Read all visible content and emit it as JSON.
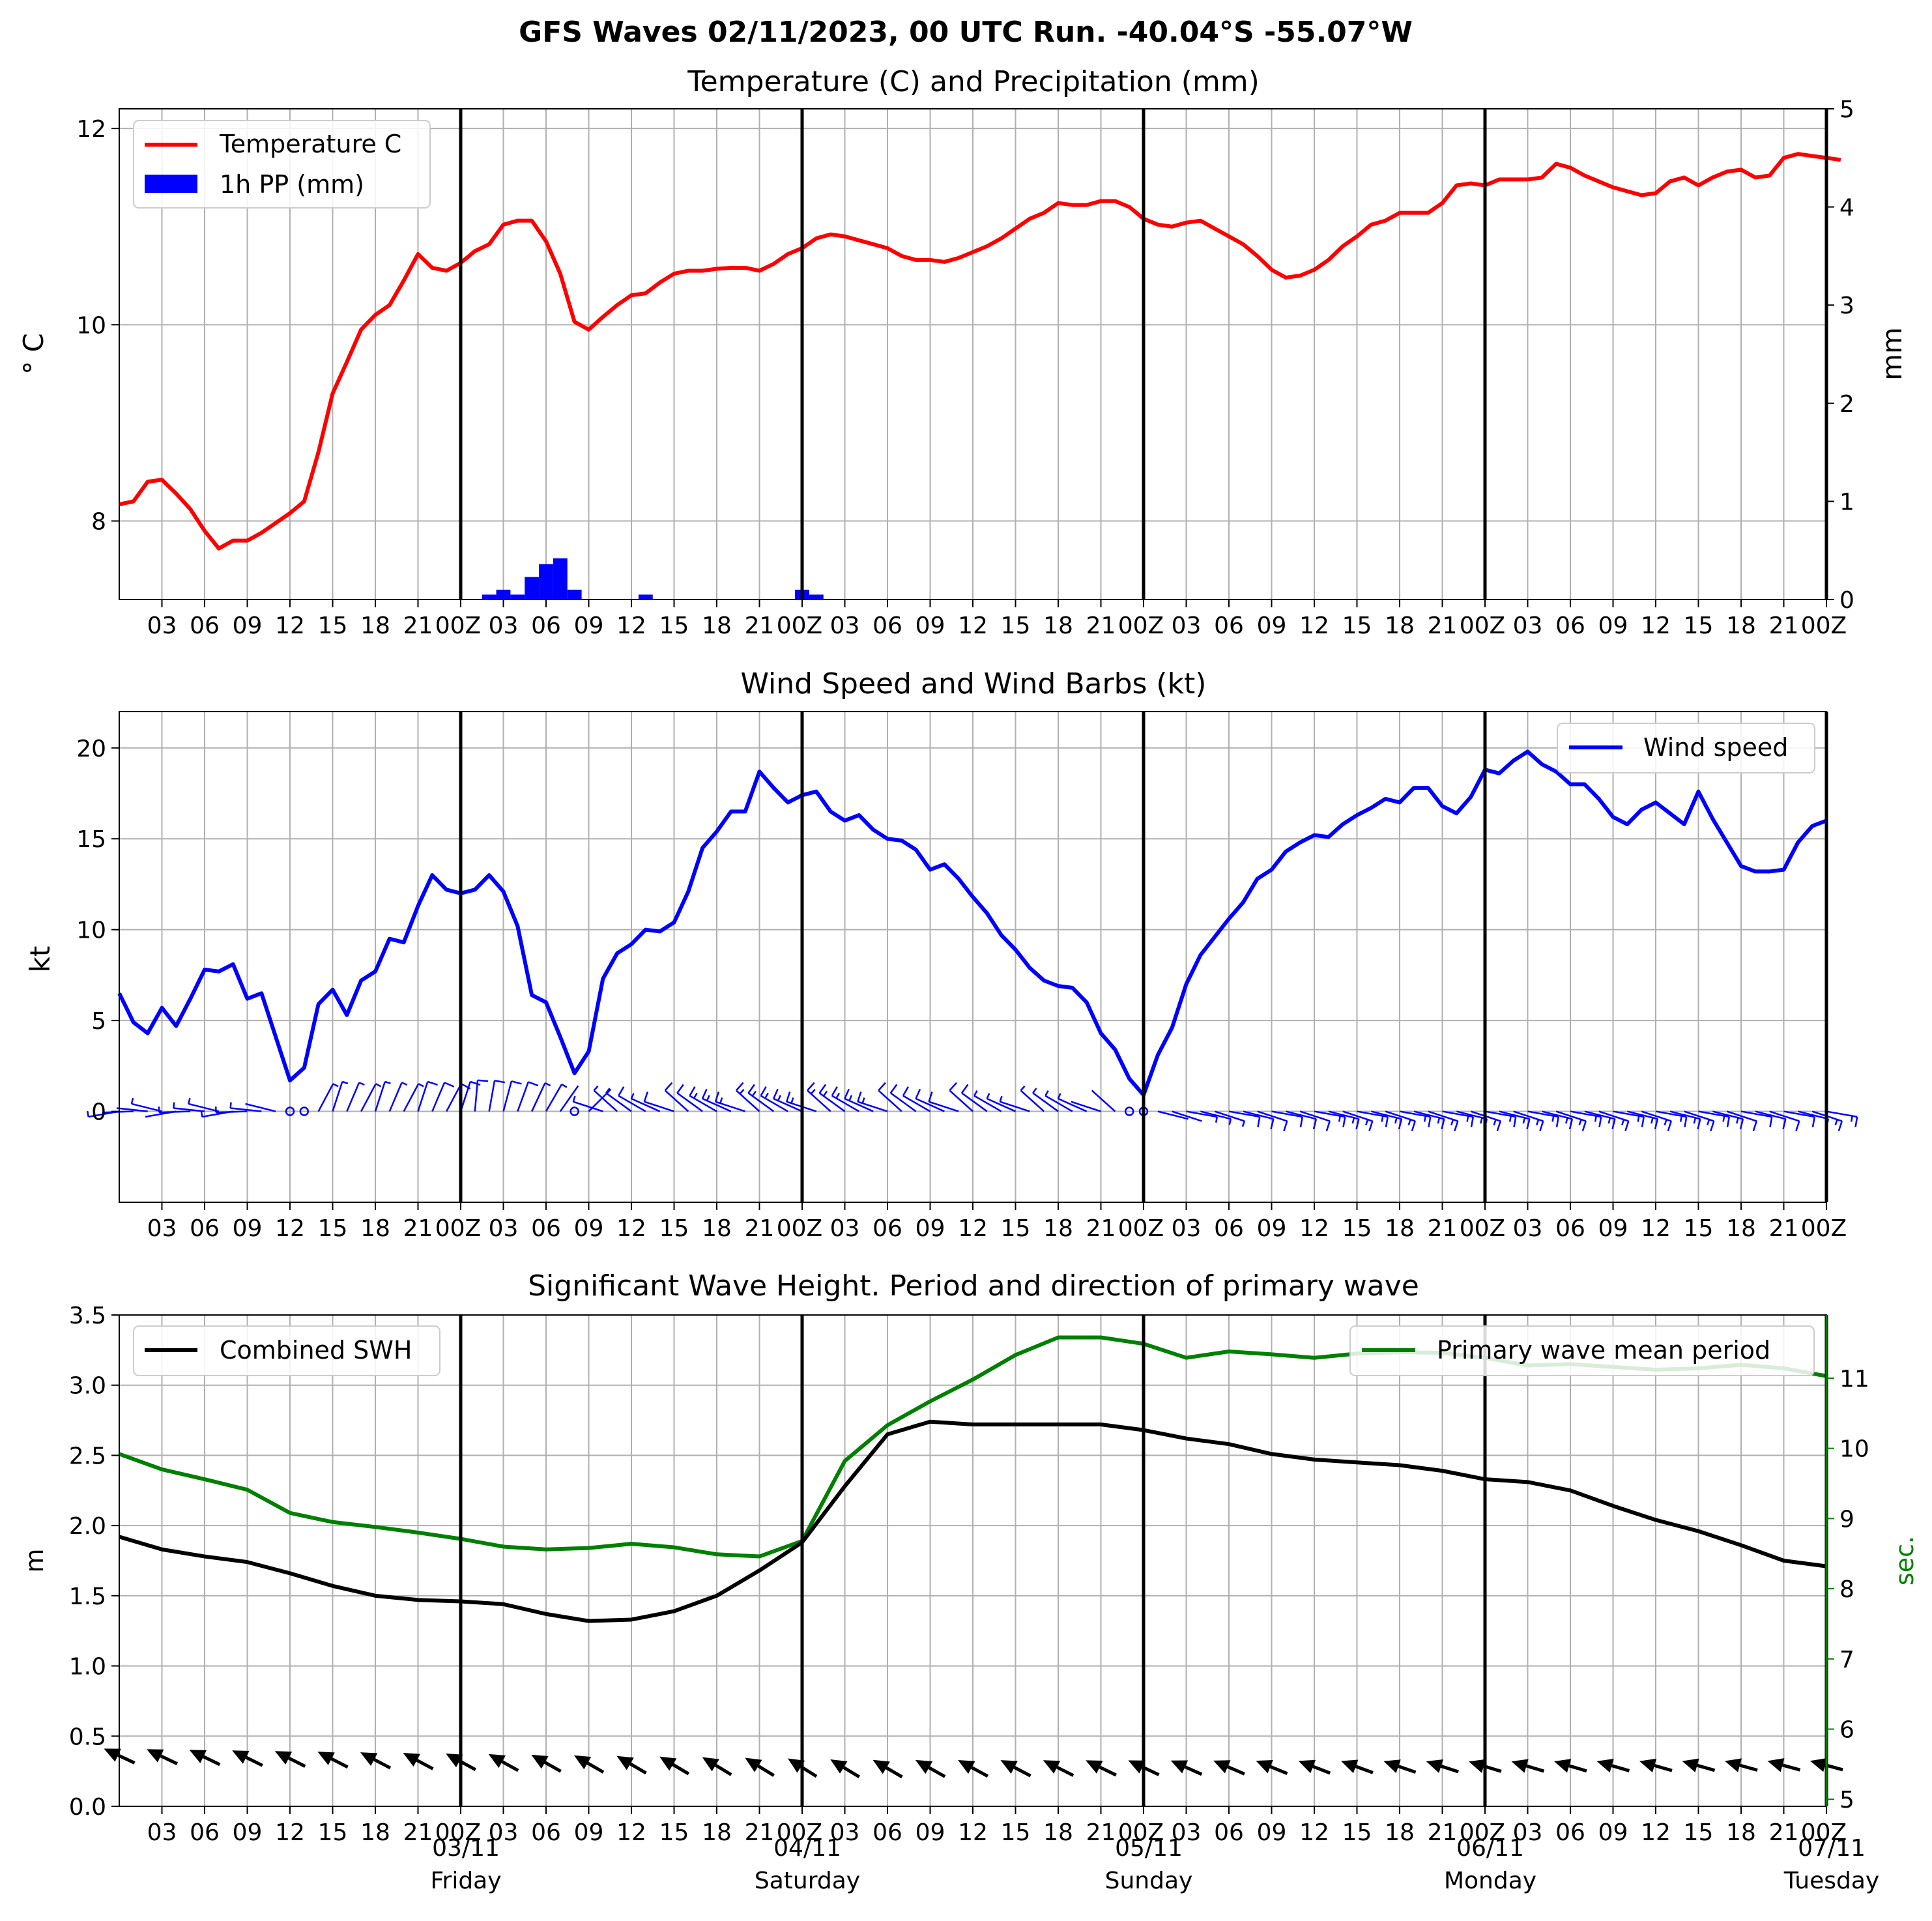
{
  "suptitle": "GFS Waves 02/11/2023, 00 UTC Run. -40.04°S -55.07°W",
  "time_axis": {
    "start": "02/11 00Z",
    "step_hours": 3,
    "tick_labels": [
      "03",
      "06",
      "09",
      "12",
      "15",
      "18",
      "21",
      "00Z",
      "03",
      "06",
      "09",
      "12",
      "15",
      "18",
      "21",
      "00Z",
      "03",
      "06",
      "09",
      "12",
      "15",
      "18",
      "21",
      "00Z",
      "03",
      "06",
      "09",
      "12",
      "15",
      "18",
      "21",
      "00Z",
      "03",
      "06",
      "09",
      "12",
      "15",
      "18",
      "21",
      "00Z"
    ],
    "day_labels": [
      {
        "hour": 24,
        "date": "03/11",
        "day": "Friday"
      },
      {
        "hour": 48,
        "date": "04/11",
        "day": "Saturday"
      },
      {
        "hour": 72,
        "date": "05/11",
        "day": "Sunday"
      },
      {
        "hour": 96,
        "date": "06/11",
        "day": "Monday"
      },
      {
        "hour": 120,
        "date": "07/11",
        "day": "Tuesday"
      }
    ]
  },
  "colors": {
    "temperature": "#ff0000",
    "precip": "#0000ff",
    "wind": "#0000ff",
    "swh": "#000000",
    "period": "#008000",
    "grid": "#b0b0b0",
    "day_line": "#000000"
  },
  "chart_data": [
    {
      "type": "line",
      "title": "Temperature (C) and Precipitation (mm)",
      "ylabel": "° C",
      "ylabel2": "mm",
      "xlim_hours": [
        0,
        120
      ],
      "ylim": [
        7.2,
        12.2
      ],
      "ylim2": [
        0,
        5
      ],
      "yticks": [
        "8",
        "10",
        "12"
      ],
      "yticks2": [
        "0",
        "1",
        "2",
        "3",
        "4",
        "5"
      ],
      "grid": true,
      "legend": "top-left",
      "series": [
        {
          "name": "Temperature C",
          "step_hours": 1,
          "values": [
            8.17,
            8.2,
            8.4,
            8.42,
            8.28,
            8.12,
            7.9,
            7.72,
            7.8,
            7.8,
            7.88,
            7.98,
            8.08,
            8.2,
            8.7,
            9.3,
            9.62,
            9.95,
            10.1,
            10.2,
            10.45,
            10.72,
            10.58,
            10.55,
            10.63,
            10.75,
            10.82,
            11.02,
            11.06,
            11.06,
            10.85,
            10.52,
            10.03,
            9.95,
            10.08,
            10.2,
            10.3,
            10.32,
            10.43,
            10.52,
            10.55,
            10.55,
            10.57,
            10.58,
            10.58,
            10.55,
            10.62,
            10.72,
            10.78,
            10.88,
            10.92,
            10.9,
            10.86,
            10.82,
            10.78,
            10.7,
            10.66,
            10.66,
            10.64,
            10.68,
            10.74,
            10.8,
            10.88,
            10.98,
            11.08,
            11.14,
            11.24,
            11.22,
            11.22,
            11.26,
            11.26,
            11.2,
            11.08,
            11.02,
            11.0,
            11.04,
            11.06,
            10.98,
            10.9,
            10.82,
            10.7,
            10.56,
            10.48,
            10.5,
            10.56,
            10.66,
            10.8,
            10.9,
            11.02,
            11.06,
            11.14,
            11.14,
            11.14,
            11.24,
            11.42,
            11.44,
            11.42,
            11.48,
            11.48,
            11.48,
            11.5,
            11.64,
            11.6,
            11.52,
            11.46,
            11.4,
            11.36,
            11.32,
            11.34,
            11.46,
            11.5,
            11.42,
            11.5,
            11.56,
            11.58,
            11.5,
            11.52,
            11.7,
            11.74,
            11.72,
            11.7,
            11.68
          ]
        },
        {
          "name": "1h PP (mm)",
          "kind": "bar",
          "axis": "right",
          "points": [
            [
              26,
              0.05
            ],
            [
              27,
              0.1
            ],
            [
              28,
              0.05
            ],
            [
              29,
              0.23
            ],
            [
              30,
              0.36
            ],
            [
              31,
              0.42
            ],
            [
              32,
              0.1
            ],
            [
              37,
              0.05
            ],
            [
              48,
              0.1
            ],
            [
              49,
              0.05
            ]
          ]
        }
      ]
    },
    {
      "type": "line",
      "title": "Wind Speed and Wind Barbs (kt)",
      "ylabel": "kt",
      "xlim_hours": [
        0,
        120
      ],
      "ylim": [
        -5,
        22
      ],
      "yticks": [
        "0",
        "5",
        "10",
        "15",
        "20"
      ],
      "grid": true,
      "legend": "top-right",
      "series": [
        {
          "name": "Wind speed",
          "step_hours": 1,
          "values": [
            6.5,
            4.9,
            4.3,
            5.7,
            4.7,
            6.2,
            7.8,
            7.7,
            8.1,
            6.2,
            6.5,
            4.1,
            1.7,
            2.4,
            5.9,
            6.7,
            5.3,
            7.2,
            7.7,
            9.5,
            9.3,
            11.3,
            13.0,
            12.2,
            12.0,
            12.2,
            13.0,
            12.1,
            10.2,
            6.4,
            6.0,
            4.1,
            2.1,
            3.3,
            7.3,
            8.7,
            9.2,
            10.0,
            9.9,
            10.4,
            12.1,
            14.5,
            15.4,
            16.5,
            16.5,
            18.7,
            17.8,
            17.0,
            17.4,
            17.6,
            16.5,
            16.0,
            16.3,
            15.5,
            15.0,
            14.9,
            14.4,
            13.3,
            13.6,
            12.8,
            11.8,
            10.9,
            9.7,
            8.9,
            7.9,
            7.2,
            6.9,
            6.8,
            6.0,
            4.3,
            3.4,
            1.8,
            0.9,
            3.1,
            4.6,
            7.0,
            8.6,
            9.6,
            10.6,
            11.5,
            12.8,
            13.3,
            14.3,
            14.8,
            15.2,
            15.1,
            15.8,
            16.3,
            16.7,
            17.2,
            17.0,
            17.8,
            17.8,
            16.8,
            16.4,
            17.3,
            18.8,
            18.6,
            19.3,
            19.8,
            19.1,
            18.7,
            18.0,
            18.0,
            17.2,
            16.2,
            15.8,
            16.6,
            17.0,
            16.4,
            15.8,
            17.6,
            16.1,
            14.8,
            13.5,
            13.2,
            13.2,
            13.3,
            14.8,
            15.7,
            16.0
          ]
        },
        {
          "name": "wind barbs",
          "kind": "barbs",
          "every_hours": 1,
          "symbol_count": 121
        }
      ]
    },
    {
      "type": "line",
      "title": "Significant Wave Height. Period and direction of primary wave",
      "ylabel": "m",
      "ylabel2": "sec.",
      "xlim_hours": [
        0,
        120
      ],
      "ylim": [
        0,
        3.5
      ],
      "ylim2": [
        4.9,
        11.9
      ],
      "yticks": [
        "0.0",
        "0.5",
        "1.0",
        "1.5",
        "2.0",
        "2.5",
        "3.0",
        "3.5"
      ],
      "yticks2": [
        "5",
        "6",
        "7",
        "8",
        "9",
        "10",
        "11"
      ],
      "grid": true,
      "legend": "top-left",
      "legend2": "top-right",
      "series": [
        {
          "name": "Combined SWH",
          "step_hours": 3,
          "values": [
            1.92,
            1.83,
            1.78,
            1.74,
            1.66,
            1.57,
            1.5,
            1.47,
            1.46,
            1.44,
            1.37,
            1.32,
            1.33,
            1.39,
            1.5,
            1.68,
            1.88,
            2.28,
            2.65,
            2.74,
            2.72,
            2.72,
            2.72,
            2.72,
            2.68,
            2.62,
            2.58,
            2.51,
            2.47,
            2.45,
            2.43,
            2.39,
            2.33,
            2.31,
            2.25,
            2.14,
            2.04,
            1.96,
            1.86,
            1.75,
            1.71
          ]
        },
        {
          "name": "Primary wave mean period",
          "axis": "right",
          "step_hours": 3,
          "values": [
            9.92,
            9.7,
            9.56,
            9.41,
            9.08,
            8.95,
            8.88,
            8.8,
            8.71,
            8.6,
            8.56,
            8.58,
            8.64,
            8.59,
            8.49,
            8.46,
            8.68,
            9.82,
            10.33,
            10.67,
            10.98,
            11.33,
            11.58,
            11.58,
            11.49,
            11.29,
            11.38,
            11.34,
            11.29,
            11.35,
            11.37,
            11.36,
            11.29,
            11.18,
            11.2,
            11.16,
            11.12,
            11.14,
            11.19,
            11.14,
            11.03
          ]
        },
        {
          "name": "primary wave direction",
          "kind": "arrows",
          "every_hours": 3,
          "symbol_count": 41
        }
      ]
    }
  ]
}
